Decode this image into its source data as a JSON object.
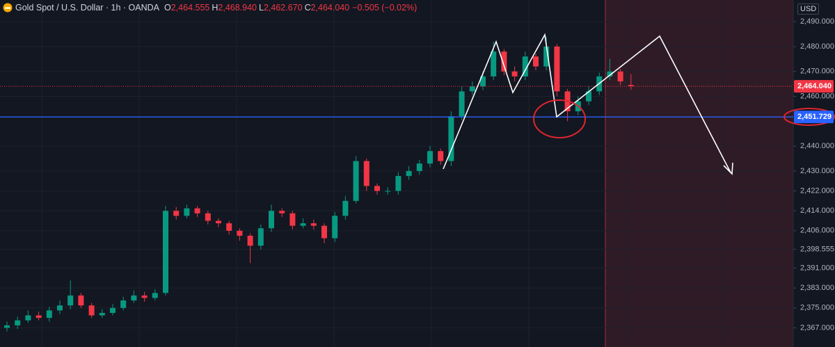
{
  "header": {
    "symbol": "Gold Spot / U.S. Dollar · 1h · OANDA",
    "ohlc": [
      {
        "key": "O",
        "value": "2,464.555"
      },
      {
        "key": "H",
        "value": "2,468.940"
      },
      {
        "key": "L",
        "value": "2,462.670"
      },
      {
        "key": "C",
        "value": "2,464.040"
      }
    ],
    "change": "−0.505 (−0.02%)",
    "currency": "USD"
  },
  "chart_data": {
    "type": "candlestick",
    "ylim": [
      2359.3,
      2498.7
    ],
    "yticks": [
      {
        "value": 2490,
        "label": "2,490.000"
      },
      {
        "value": 2480,
        "label": "2,480.000"
      },
      {
        "value": 2470,
        "label": "2,470.000"
      },
      {
        "value": 2460,
        "label": "2,460.000"
      },
      {
        "value": 2440,
        "label": "2,440.000"
      },
      {
        "value": 2430,
        "label": "2,430.000"
      },
      {
        "value": 2422,
        "label": "2,422.000"
      },
      {
        "value": 2414,
        "label": "2,414.000"
      },
      {
        "value": 2406,
        "label": "2,406.000"
      },
      {
        "value": 2398.555,
        "label": "2,398.555"
      },
      {
        "value": 2391,
        "label": "2,391.000"
      },
      {
        "value": 2383,
        "label": "2,383.000"
      },
      {
        "value": 2375,
        "label": "2,375.000"
      },
      {
        "value": 2367,
        "label": "2,367.000"
      }
    ],
    "grid": true,
    "up_color": "#089981",
    "down_color": "#f23645",
    "open": [
      2367,
      2368,
      2370,
      2372,
      2371,
      2374,
      2376,
      2380,
      2376,
      2372,
      2373,
      2375,
      2378,
      2380,
      2379,
      2381,
      2414,
      2412,
      2415,
      2413,
      2410,
      2409,
      2406,
      2404,
      2400,
      2407,
      2414,
      2413,
      2408,
      2409,
      2408,
      2403,
      2412,
      2418,
      2434,
      2424,
      2422,
      2422,
      2428,
      2430,
      2433,
      2438,
      2434,
      2452,
      2462,
      2464,
      2468,
      2478,
      2470,
      2468,
      2476,
      2472,
      2480,
      2462,
      2454,
      2458,
      2462,
      2468,
      2470,
      2464.555
    ],
    "high": [
      2369.5,
      2371.5,
      2374,
      2373.5,
      2375.5,
      2378,
      2386,
      2381,
      2377,
      2374.5,
      2376.5,
      2379.5,
      2382,
      2381.5,
      2382.5,
      2416,
      2415.5,
      2416.5,
      2416,
      2414,
      2411,
      2410,
      2407,
      2405,
      2408.5,
      2416.5,
      2415,
      2414,
      2411,
      2410.5,
      2409,
      2413.5,
      2420,
      2436,
      2435,
      2425,
      2423.5,
      2429.5,
      2432,
      2434.5,
      2440,
      2439,
      2454,
      2464,
      2466,
      2470,
      2482,
      2479,
      2472,
      2478,
      2477,
      2484,
      2481,
      2463,
      2460,
      2464,
      2469.5,
      2475,
      2471,
      2468.94
    ],
    "low": [
      2365.5,
      2366.5,
      2369,
      2370,
      2369.5,
      2372.5,
      2374.5,
      2375,
      2371,
      2371,
      2372,
      2374,
      2377,
      2377.5,
      2378,
      2380,
      2410.5,
      2411,
      2411.5,
      2408.5,
      2407.5,
      2404.5,
      2402,
      2393,
      2398.5,
      2405.5,
      2411.5,
      2406.5,
      2407,
      2406.5,
      2401,
      2401.5,
      2410.5,
      2417,
      2422,
      2420.5,
      2420.5,
      2420.5,
      2426.5,
      2428.5,
      2431.5,
      2432.5,
      2432,
      2450.5,
      2460.5,
      2462.5,
      2466.5,
      2468.5,
      2466,
      2466.5,
      2470.5,
      2470.5,
      2460,
      2450,
      2452.5,
      2456.5,
      2460.5,
      2466.5,
      2464.5,
      2462.67
    ],
    "close": [
      2368,
      2370,
      2372,
      2371,
      2374,
      2376,
      2380,
      2376,
      2372,
      2373,
      2375,
      2378,
      2380,
      2379,
      2381,
      2414,
      2412,
      2415,
      2413,
      2410,
      2409,
      2406,
      2404,
      2400,
      2407,
      2414,
      2413,
      2408,
      2409,
      2408,
      2403,
      2412,
      2418,
      2434,
      2424,
      2422,
      2422,
      2428,
      2430,
      2433,
      2438,
      2434,
      2452,
      2462,
      2464,
      2468,
      2478,
      2470,
      2468,
      2476,
      2472,
      2480,
      2462,
      2454,
      2458,
      2462,
      2468,
      2470,
      2466,
      2464.04
    ],
    "price_lines": [
      {
        "value": 2464.04,
        "label": "2,464.040",
        "color": "#f23645",
        "style": "dotted"
      },
      {
        "value": 2451.729,
        "label": "2,451.729",
        "color": "#2962ff",
        "style": "solid"
      }
    ]
  }
}
